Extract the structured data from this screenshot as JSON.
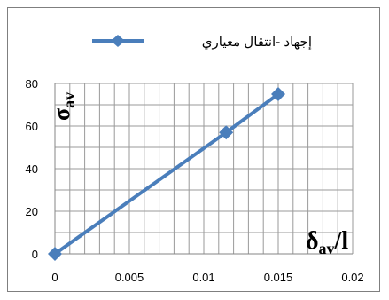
{
  "chart_data": {
    "type": "line",
    "legend": {
      "label": "إجهاد -انتقال معياري",
      "placement": "top"
    },
    "series": [
      {
        "name": "إجهاد -انتقال معياري",
        "color": "#4a7ebb",
        "x": [
          0,
          0.0115,
          0.015
        ],
        "y": [
          0,
          57,
          75
        ]
      }
    ],
    "xlim": [
      0,
      0.02
    ],
    "ylim": [
      0,
      80
    ],
    "x_ticks": [
      "0",
      "0.005",
      "0.01",
      "0.015",
      "0.02"
    ],
    "y_ticks": [
      "0",
      "20",
      "40",
      "60",
      "80"
    ],
    "x_minor_step": 0.001,
    "y_major_step": 20,
    "y_minor_step": 10,
    "grid": true,
    "annotations": {
      "y_label": {
        "main": "σ",
        "sub": "av"
      },
      "x_label": {
        "main": "δ",
        "sub": "av",
        "suffix": "/l"
      }
    }
  }
}
